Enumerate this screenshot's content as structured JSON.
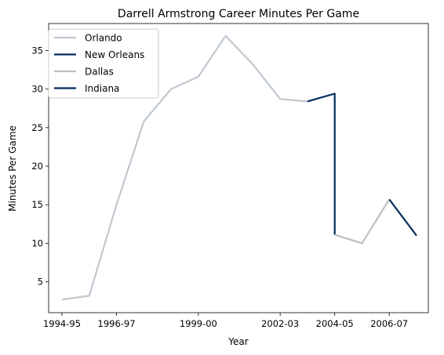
{
  "chart_data": {
    "type": "line",
    "title": "Darrell Armstrong Career Minutes Per Game",
    "xlabel": "Year",
    "ylabel": "Minutes Per Game",
    "x": [
      "1994-95",
      "1995-96",
      "1996-97",
      "1997-98",
      "1998-99",
      "1999-00",
      "2000-01",
      "2001-02",
      "2002-03",
      "2003-04",
      "2004-05",
      "2004-05",
      "2005-06",
      "2006-07",
      "2007-08"
    ],
    "x_ticks": [
      "1994-95",
      "1996-97",
      "1999-00",
      "2002-03",
      "2004-05",
      "2006-07"
    ],
    "y_ticks": [
      5,
      10,
      15,
      20,
      25,
      30,
      35
    ],
    "ylim": [
      1,
      38.5
    ],
    "grid": false,
    "legend_position": "top-left",
    "series": [
      {
        "name": "Orlando",
        "color": "#c0c8d0",
        "points": [
          {
            "x": "1994-95",
            "y": 2.7
          },
          {
            "x": "1995-96",
            "y": 3.2
          },
          {
            "x": "1996-97",
            "y": 15.0
          },
          {
            "x": "1997-98",
            "y": 25.8
          },
          {
            "x": "1998-99",
            "y": 30.0
          },
          {
            "x": "1999-00",
            "y": 31.6
          },
          {
            "x": "2000-01",
            "y": 36.9
          },
          {
            "x": "2001-02",
            "y": 33.2
          },
          {
            "x": "2002-03",
            "y": 28.7
          },
          {
            "x": "2003-04",
            "y": 28.4
          }
        ]
      },
      {
        "name": "New Orleans",
        "color": "#002b5c",
        "points": [
          {
            "x": "2003-04",
            "y": 28.4
          },
          {
            "x": "2004-05",
            "y": 29.4
          },
          {
            "x": "2004-05",
            "y": 11.1
          }
        ]
      },
      {
        "name": "Dallas",
        "color": "#bfbfbf",
        "points": [
          {
            "x": "2004-05",
            "y": 11.1
          },
          {
            "x": "2005-06",
            "y": 10.0
          },
          {
            "x": "2006-07",
            "y": 15.7
          }
        ]
      },
      {
        "name": "Indiana",
        "color": "#002b5c",
        "points": [
          {
            "x": "2006-07",
            "y": 15.7
          },
          {
            "x": "2007-08",
            "y": 11.0
          }
        ]
      }
    ]
  }
}
